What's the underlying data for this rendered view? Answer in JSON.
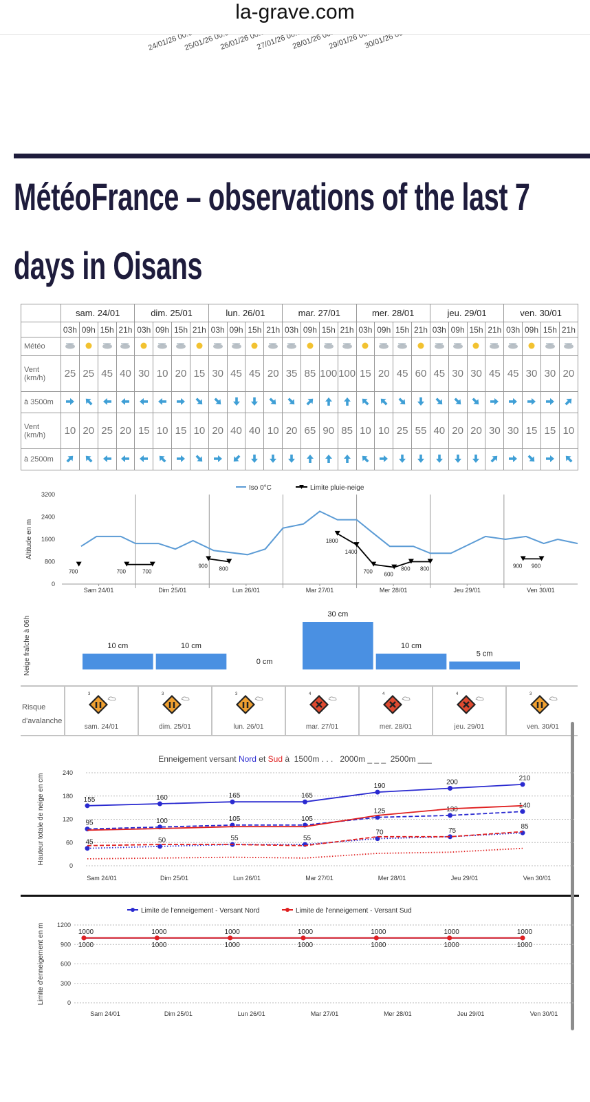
{
  "header": {
    "site": "la-grave.com",
    "dates": [
      "24/01/26 00:0",
      "25/01/26 00:0",
      "26/01/26 00:0",
      "27/01/26 00:0",
      "28/01/26 00:0",
      "29/01/26 00:0",
      "30/01/26 00:0"
    ]
  },
  "heading": "MétéoFrance – observations of the last 7 days in Oisans",
  "table": {
    "days": [
      "sam. 24/01",
      "dim. 25/01",
      "lun. 26/01",
      "mar. 27/01",
      "mer. 28/01",
      "jeu. 29/01",
      "ven. 30/01"
    ],
    "hours": [
      "03h",
      "09h",
      "15h",
      "21h"
    ],
    "row_labels": [
      "Météo",
      "Vent (km/h)",
      "à 3500m",
      "Vent (km/h)",
      "à 2500m"
    ],
    "wind_3500": [
      25,
      25,
      45,
      40,
      30,
      10,
      20,
      15,
      30,
      45,
      45,
      20,
      35,
      85,
      100,
      100,
      15,
      20,
      45,
      60,
      45,
      30,
      30,
      45,
      45,
      30,
      30,
      20
    ],
    "dir_3500": [
      90,
      315,
      270,
      270,
      270,
      270,
      90,
      135,
      135,
      180,
      180,
      135,
      135,
      45,
      0,
      0,
      315,
      315,
      135,
      180,
      135,
      135,
      135,
      90,
      90,
      90,
      90,
      45
    ],
    "wind_2500": [
      10,
      20,
      25,
      20,
      15,
      10,
      15,
      10,
      20,
      40,
      40,
      10,
      20,
      65,
      90,
      85,
      10,
      10,
      25,
      55,
      40,
      20,
      20,
      30,
      30,
      15,
      15,
      10
    ],
    "dir_2500": [
      45,
      315,
      270,
      270,
      270,
      315,
      90,
      135,
      90,
      225,
      180,
      180,
      180,
      0,
      0,
      0,
      315,
      90,
      180,
      180,
      180,
      180,
      180,
      45,
      90,
      135,
      90,
      315
    ]
  },
  "avalanche": {
    "label": "Risque d'avalanche",
    "levels": [
      3,
      3,
      3,
      4,
      4,
      4,
      3
    ]
  },
  "chart_data": [
    {
      "type": "line",
      "y_label": "Altitude en m",
      "legend": true,
      "vertical_grid": true,
      "xlim": [
        0,
        7
      ],
      "ylim": [
        0,
        3200
      ],
      "yticks": [
        0,
        800,
        1600,
        2400,
        3200
      ],
      "xticks": [
        {
          "value": 0.5,
          "label": "Sam 24/01"
        },
        {
          "value": 1.5,
          "label": "Dim 25/01"
        },
        {
          "value": 2.5,
          "label": "Lun 26/01"
        },
        {
          "value": 3.5,
          "label": "Mar 27/01"
        },
        {
          "value": 4.5,
          "label": "Mer 28/01"
        },
        {
          "value": 5.5,
          "label": "Jeu 29/01"
        },
        {
          "value": 6.5,
          "label": "Ven 30/01"
        }
      ],
      "series": [
        {
          "name": "Iso 0°C",
          "color": "#5b9bd5",
          "style": "solid",
          "x": [
            0.26,
            0.47,
            0.8,
            1.0,
            1.31,
            1.54,
            1.78,
            2.06,
            2.52,
            2.76,
            3.0,
            3.28,
            3.5,
            3.74,
            4.0,
            4.21,
            4.45,
            4.77,
            5.0,
            5.28,
            5.75,
            6.02,
            6.3,
            6.54,
            6.73,
            7.0
          ],
          "values": [
            1350,
            1700,
            1700,
            1450,
            1450,
            1250,
            1550,
            1200,
            1050,
            1250,
            2000,
            2150,
            2600,
            2300,
            2300,
            1850,
            1350,
            1350,
            1100,
            1100,
            1700,
            1600,
            1700,
            1450,
            1600,
            1450
          ]
        },
        {
          "name": "Limite pluie-neige",
          "color": "#000000",
          "style": "solid",
          "marker": "triangle",
          "show_labels": true,
          "label_position": "below",
          "x": [
            0.23,
            null,
            0.88,
            1.23,
            null,
            1.99,
            2.27,
            null,
            3.74,
            4.0,
            4.23,
            4.51,
            4.74,
            5.0,
            null,
            6.26,
            6.51
          ],
          "values": [
            700,
            null,
            700,
            700,
            null,
            900,
            800,
            null,
            1800,
            1400,
            700,
            600,
            800,
            800,
            null,
            900,
            900
          ]
        }
      ]
    },
    {
      "type": "bar",
      "y_label": "Neige fraîche à 06h",
      "color": "#4a90e2",
      "categories": [
        null,
        null,
        null,
        null,
        null,
        null
      ],
      "values": [
        10,
        10,
        0,
        30,
        10,
        5
      ],
      "value_labels": [
        "10 cm",
        "10 cm",
        "0 cm",
        "30 cm",
        "10 cm",
        "5 cm"
      ],
      "ylim": [
        0,
        30
      ]
    },
    {
      "type": "line",
      "y_label": "Hauteur totale de neige en cm",
      "grid": true,
      "title_parts": [
        {
          "text": "Enneigement versant ",
          "color": "#444444"
        },
        {
          "text": "Nord",
          "color": "#2a2ad0"
        },
        {
          "text": " et ",
          "color": "#444444"
        },
        {
          "text": "Sud",
          "color": "#e02020"
        },
        {
          "text": " à  1500m . . .   2000m _ _ _  2500m ___",
          "color": "#444444"
        }
      ],
      "categories": [
        "Sam 24/01",
        "Dim 25/01",
        "Lun 26/01",
        "Mar 27/01",
        "Mer 28/01",
        "Jeu 29/01",
        "Ven 30/01"
      ],
      "ylim": [
        0,
        240
      ],
      "yticks": [
        0,
        60,
        120,
        180,
        240
      ],
      "series": [
        {
          "color": "#2a2ad0",
          "style": "solid",
          "marker": "circle",
          "show_labels": true,
          "label_position": "above",
          "values": [
            155,
            160,
            165,
            165,
            190,
            200,
            210
          ]
        },
        {
          "color": "#2a2ad0",
          "style": "dashed",
          "marker": "circle",
          "show_labels": true,
          "label_position": "above",
          "values": [
            95,
            100,
            105,
            105,
            125,
            130,
            140
          ]
        },
        {
          "color": "#2a2ad0",
          "style": "dotted",
          "marker": "circle",
          "show_labels": true,
          "label_position": "above",
          "values": [
            45,
            50,
            55,
            55,
            70,
            75,
            85
          ]
        },
        {
          "color": "#e02020",
          "style": "solid",
          "values": [
            92,
            96,
            101,
            101,
            130,
            147,
            155
          ]
        },
        {
          "color": "#e02020",
          "style": "dashed",
          "values": [
            52,
            55,
            55,
            52,
            75,
            75,
            88
          ]
        },
        {
          "color": "#e02020",
          "style": "dotted",
          "values": [
            18,
            20,
            22,
            20,
            32,
            35,
            45
          ]
        }
      ]
    },
    {
      "type": "line",
      "y_label": "Limite d'enneigement en m",
      "grid": true,
      "legend": true,
      "categories": [
        "Sam 24/01",
        "Dim 25/01",
        "Lun 26/01",
        "Mar 27/01",
        "Mer 28/01",
        "Jeu 29/01",
        "Ven 30/01"
      ],
      "ylim": [
        0,
        1200
      ],
      "yticks": [
        0,
        300,
        600,
        900,
        1200
      ],
      "series": [
        {
          "name": "Limite de l'enneigement - Versant Nord",
          "color": "#2a2ad0",
          "style": "solid",
          "marker": "circle",
          "show_labels": true,
          "label_position": "above",
          "values": [
            1000,
            1000,
            1000,
            1000,
            1000,
            1000,
            1000
          ]
        },
        {
          "name": "Limite de l'enneigement - Versant Sud",
          "color": "#e02020",
          "style": "solid",
          "marker": "circle",
          "show_labels": true,
          "label_position": "below",
          "values": [
            1000,
            1000,
            1000,
            1000,
            1000,
            1000,
            1000
          ]
        }
      ]
    }
  ]
}
